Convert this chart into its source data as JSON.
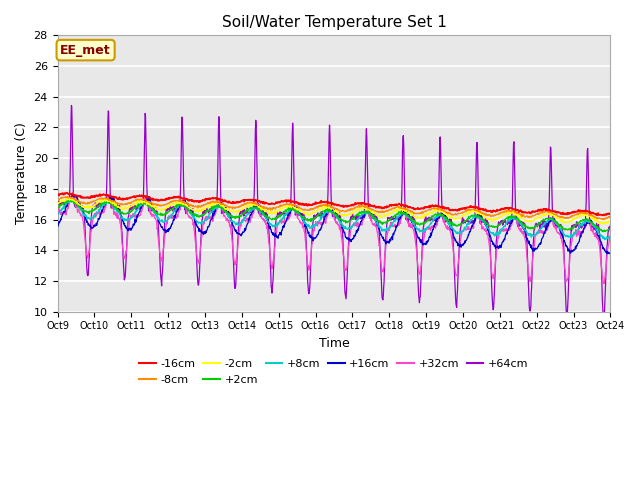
{
  "title": "Soil/Water Temperature Set 1",
  "xlabel": "Time",
  "ylabel": "Temperature (C)",
  "annotation_text": "EE_met",
  "annotation_bg": "#ffffcc",
  "annotation_border": "#cc9900",
  "annotation_text_color": "#880000",
  "ylim": [
    10,
    28
  ],
  "x_tick_labels": [
    "Oct 9",
    "Oct 10",
    "Oct 11",
    "Oct 12",
    "Oct 13",
    "Oct 14",
    "Oct 15",
    "Oct 16",
    "Oct 17",
    "Oct 18",
    "Oct 19",
    "Oct 20",
    "Oct 21",
    "Oct 22",
    "Oct 23",
    "Oct 24"
  ],
  "series_colors": {
    "-16cm": "#ff0000",
    "-8cm": "#ff8c00",
    "-2cm": "#ffff00",
    "+2cm": "#00cc00",
    "+8cm": "#00cccc",
    "+16cm": "#0000cc",
    "+32cm": "#ff44cc",
    "+64cm": "#9900cc"
  },
  "bg_color": "#e8e8e8",
  "grid_color": "#ffffff",
  "days": 15,
  "num_points": 1440
}
